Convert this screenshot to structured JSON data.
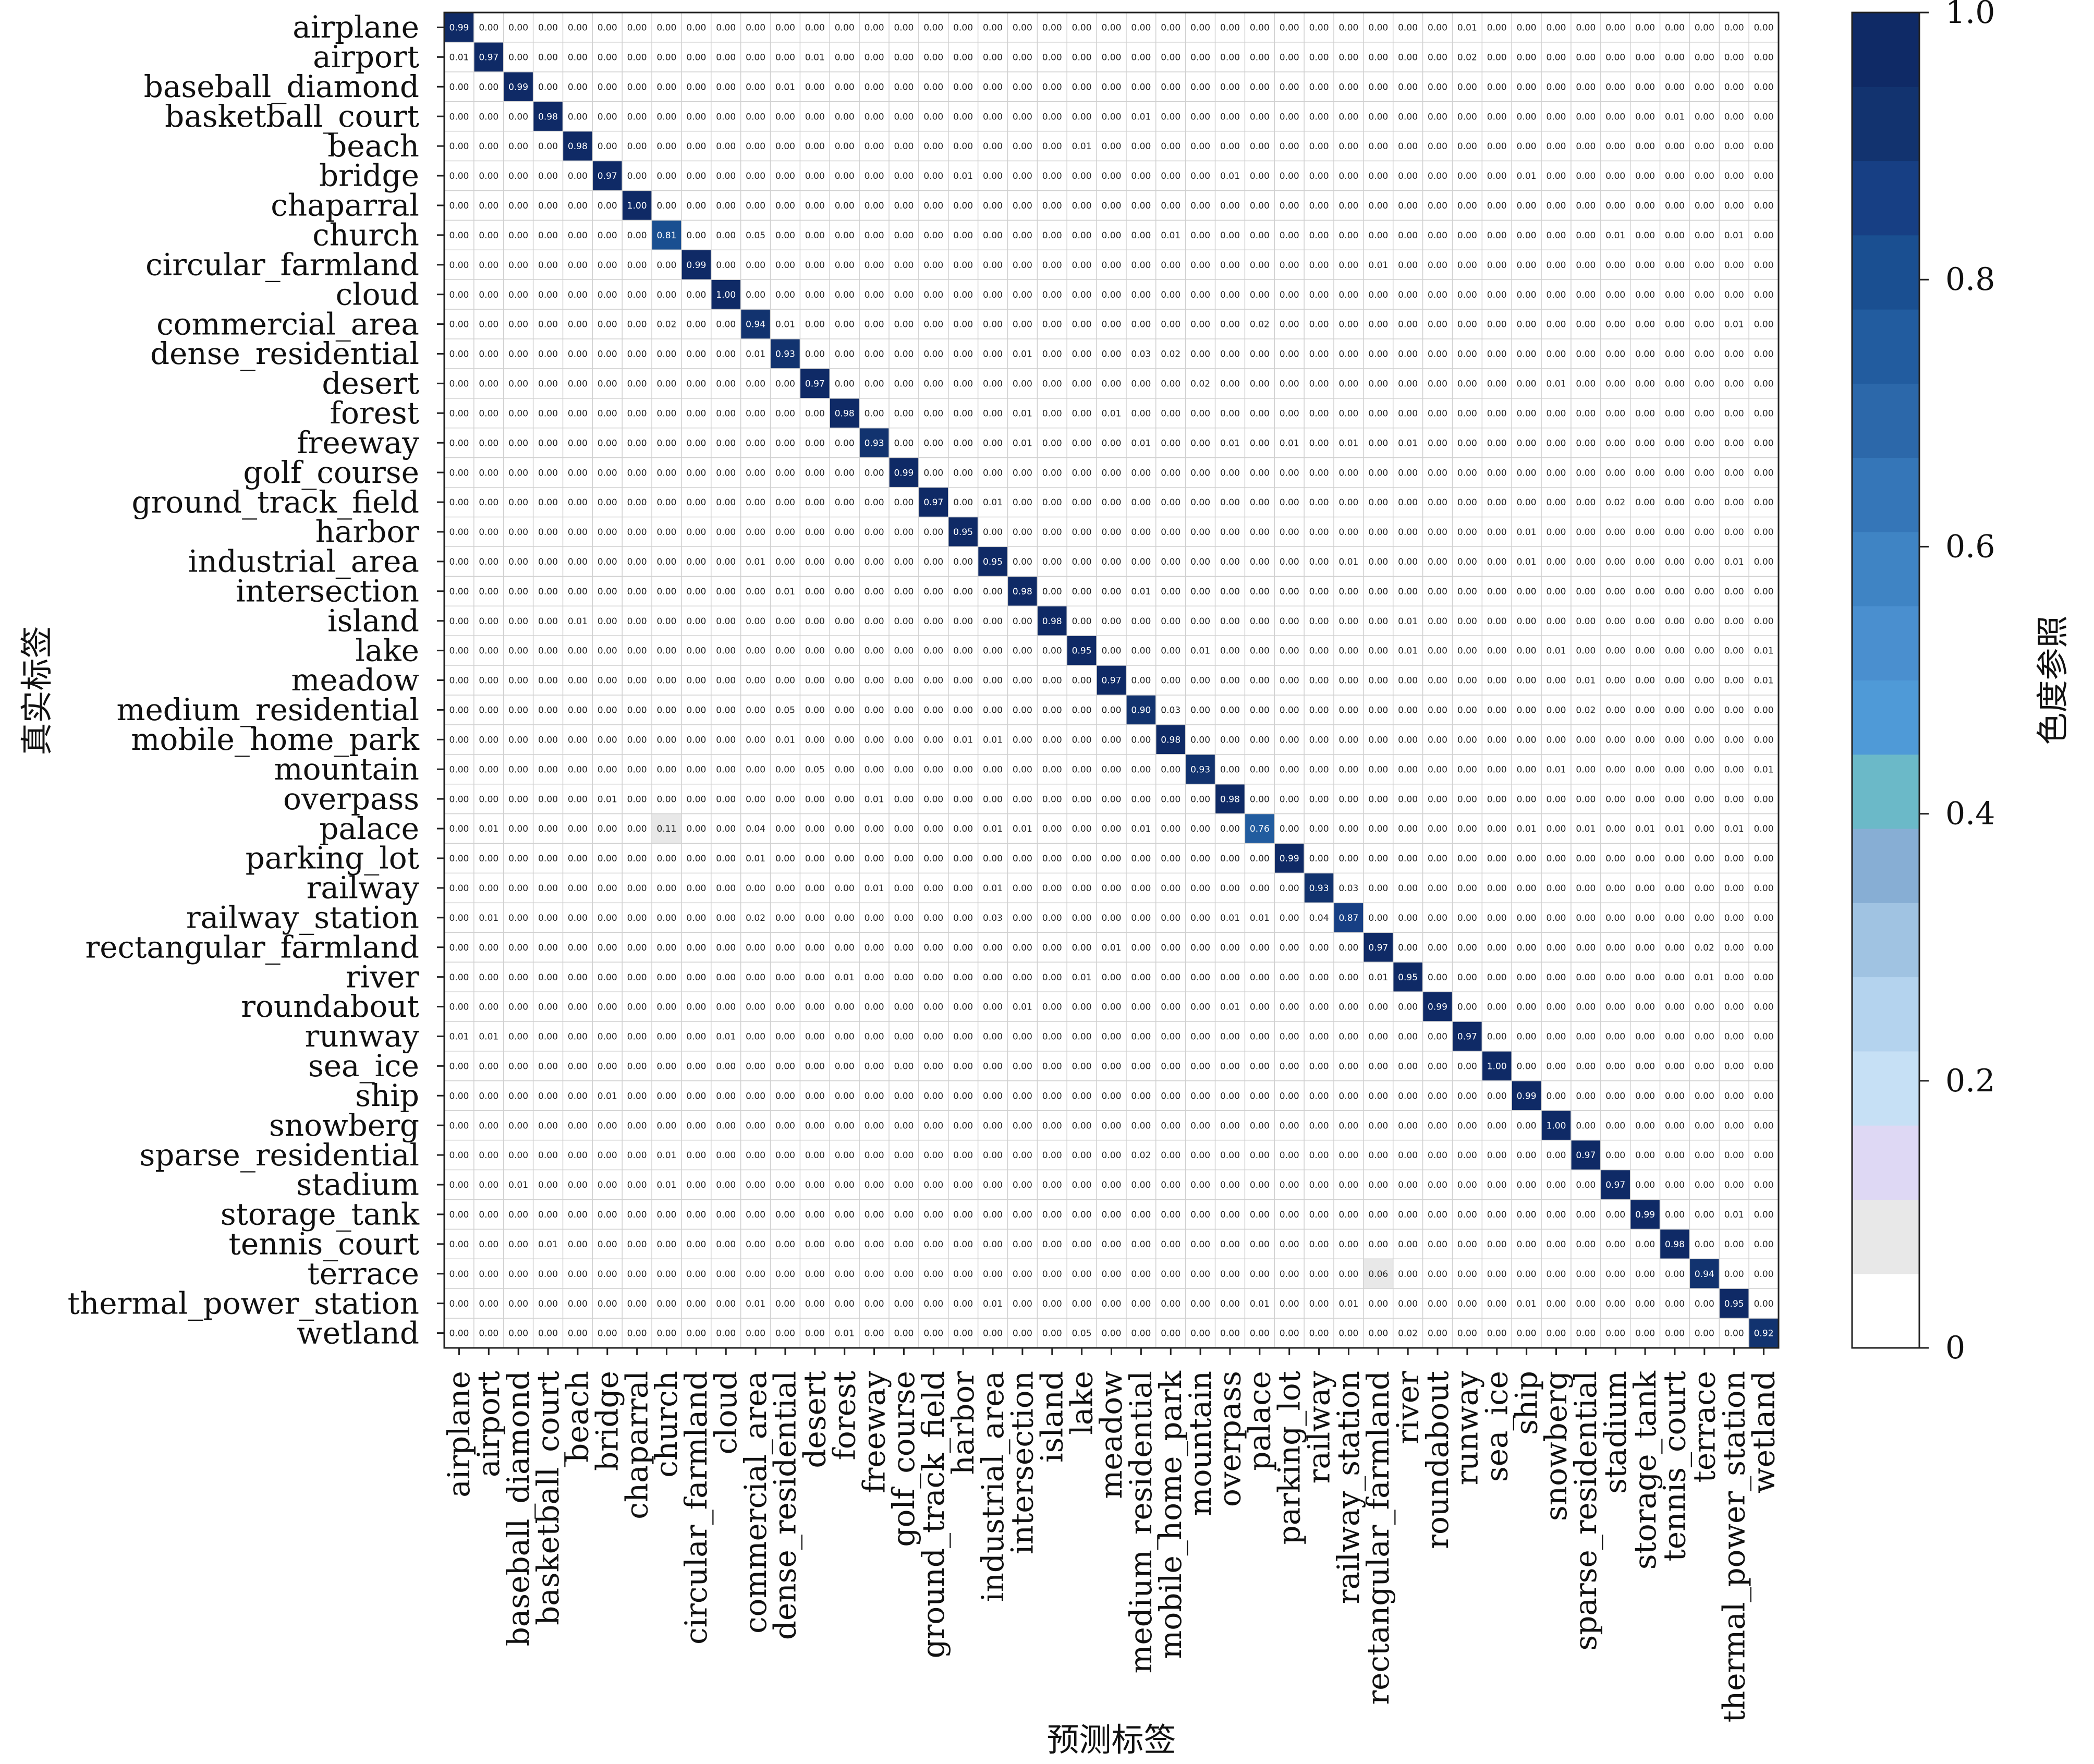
{
  "chart_data": {
    "type": "heatmap",
    "title": "",
    "xlabel": "预测标签",
    "ylabel": "真实标签",
    "colorbar_label": "色度参照",
    "colorbar_ticks": [
      "0",
      "0.2",
      "0.4",
      "0.6",
      "0.8",
      "1.0"
    ],
    "vlim": [
      0,
      1
    ],
    "grid": true,
    "number_format": "2 decimals",
    "colormap_steps": [
      "#ffffff",
      "#e8e8e8",
      "#ded8f4",
      "#c6e0f5",
      "#b4d3ee",
      "#a0c3e2",
      "#87aed4",
      "#6bb9c8",
      "#4f9ad7",
      "#4a8fcf",
      "#3f84c4",
      "#3576b8",
      "#2c68aa",
      "#225c9f",
      "#1a4f91",
      "#173f84",
      "#12336f",
      "#0f2a66"
    ],
    "categories": [
      "airplane",
      "airport",
      "baseball_diamond",
      "basketball_court",
      "beach",
      "bridge",
      "chaparral",
      "church",
      "circular_farmland",
      "cloud",
      "commercial_area",
      "dense_residential",
      "desert",
      "forest",
      "freeway",
      "golf_course",
      "ground_track_field",
      "harbor",
      "industrial_area",
      "intersection",
      "island",
      "lake",
      "meadow",
      "medium_residential",
      "mobile_home_park",
      "mountain",
      "overpass",
      "palace",
      "parking_lot",
      "railway",
      "railway_station",
      "rectangular_farmland",
      "river",
      "roundabout",
      "runway",
      "sea_ice",
      "ship",
      "snowberg",
      "sparse_residential",
      "stadium",
      "storage_tank",
      "tennis_court",
      "terrace",
      "thermal_power_station",
      "wetland"
    ],
    "diagonal": [
      0.99,
      0.97,
      0.99,
      0.98,
      0.98,
      0.97,
      1.0,
      0.81,
      0.99,
      1.0,
      0.94,
      0.93,
      0.97,
      0.98,
      0.93,
      0.99,
      0.97,
      0.95,
      0.95,
      0.98,
      0.98,
      0.95,
      0.97,
      0.9,
      0.98,
      0.93,
      0.98,
      0.76,
      0.99,
      0.93,
      0.87,
      0.97,
      0.95,
      0.99,
      0.97,
      1.0,
      0.99,
      1.0,
      0.97,
      0.97,
      0.99,
      0.98,
      0.94,
      0.95,
      0.92
    ],
    "off_diagonal": [
      {
        "row": "airplane",
        "col": "runway",
        "value": 0.01
      },
      {
        "row": "airport",
        "col": "airplane",
        "value": 0.01
      },
      {
        "row": "airport",
        "col": "desert",
        "value": 0.01
      },
      {
        "row": "airport",
        "col": "runway",
        "value": 0.02
      },
      {
        "row": "baseball_diamond",
        "col": "dense_residential",
        "value": 0.01
      },
      {
        "row": "basketball_court",
        "col": "medium_residential",
        "value": 0.01
      },
      {
        "row": "basketball_court",
        "col": "tennis_court",
        "value": 0.01
      },
      {
        "row": "beach",
        "col": "lake",
        "value": 0.01
      },
      {
        "row": "bridge",
        "col": "harbor",
        "value": 0.01
      },
      {
        "row": "bridge",
        "col": "overpass",
        "value": 0.01
      },
      {
        "row": "bridge",
        "col": "ship",
        "value": 0.01
      },
      {
        "row": "church",
        "col": "commercial_area",
        "value": 0.05
      },
      {
        "row": "church",
        "col": "mobile_home_park",
        "value": 0.01
      },
      {
        "row": "church",
        "col": "stadium",
        "value": 0.01
      },
      {
        "row": "church",
        "col": "thermal_power_station",
        "value": 0.01
      },
      {
        "row": "circular_farmland",
        "col": "rectangular_farmland",
        "value": 0.01
      },
      {
        "row": "commercial_area",
        "col": "church",
        "value": 0.02
      },
      {
        "row": "commercial_area",
        "col": "dense_residential",
        "value": 0.01
      },
      {
        "row": "commercial_area",
        "col": "palace",
        "value": 0.02
      },
      {
        "row": "commercial_area",
        "col": "thermal_power_station",
        "value": 0.01
      },
      {
        "row": "dense_residential",
        "col": "commercial_area",
        "value": 0.01
      },
      {
        "row": "dense_residential",
        "col": "intersection",
        "value": 0.01
      },
      {
        "row": "dense_residential",
        "col": "medium_residential",
        "value": 0.03
      },
      {
        "row": "dense_residential",
        "col": "mobile_home_park",
        "value": 0.02
      },
      {
        "row": "desert",
        "col": "mountain",
        "value": 0.02
      },
      {
        "row": "desert",
        "col": "snowberg",
        "value": 0.01
      },
      {
        "row": "forest",
        "col": "intersection",
        "value": 0.01
      },
      {
        "row": "forest",
        "col": "meadow",
        "value": 0.01
      },
      {
        "row": "freeway",
        "col": "intersection",
        "value": 0.01
      },
      {
        "row": "freeway",
        "col": "medium_residential",
        "value": 0.01
      },
      {
        "row": "freeway",
        "col": "overpass",
        "value": 0.01
      },
      {
        "row": "freeway",
        "col": "parking_lot",
        "value": 0.01
      },
      {
        "row": "freeway",
        "col": "railway_station",
        "value": 0.01
      },
      {
        "row": "freeway",
        "col": "river",
        "value": 0.01
      },
      {
        "row": "ground_track_field",
        "col": "industrial_area",
        "value": 0.01
      },
      {
        "row": "ground_track_field",
        "col": "stadium",
        "value": 0.02
      },
      {
        "row": "harbor",
        "col": "ship",
        "value": 0.01
      },
      {
        "row": "industrial_area",
        "col": "commercial_area",
        "value": 0.01
      },
      {
        "row": "industrial_area",
        "col": "railway_station",
        "value": 0.01
      },
      {
        "row": "industrial_area",
        "col": "ship",
        "value": 0.01
      },
      {
        "row": "industrial_area",
        "col": "thermal_power_station",
        "value": 0.01
      },
      {
        "row": "intersection",
        "col": "dense_residential",
        "value": 0.01
      },
      {
        "row": "intersection",
        "col": "medium_residential",
        "value": 0.01
      },
      {
        "row": "island",
        "col": "beach",
        "value": 0.01
      },
      {
        "row": "island",
        "col": "river",
        "value": 0.01
      },
      {
        "row": "lake",
        "col": "mountain",
        "value": 0.01
      },
      {
        "row": "lake",
        "col": "river",
        "value": 0.01
      },
      {
        "row": "lake",
        "col": "snowberg",
        "value": 0.01
      },
      {
        "row": "lake",
        "col": "wetland",
        "value": 0.01
      },
      {
        "row": "meadow",
        "col": "sparse_residential",
        "value": 0.01
      },
      {
        "row": "meadow",
        "col": "wetland",
        "value": 0.01
      },
      {
        "row": "medium_residential",
        "col": "dense_residential",
        "value": 0.05
      },
      {
        "row": "medium_residential",
        "col": "mobile_home_park",
        "value": 0.03
      },
      {
        "row": "medium_residential",
        "col": "sparse_residential",
        "value": 0.02
      },
      {
        "row": "mobile_home_park",
        "col": "dense_residential",
        "value": 0.01
      },
      {
        "row": "mobile_home_park",
        "col": "harbor",
        "value": 0.01
      },
      {
        "row": "mobile_home_park",
        "col": "industrial_area",
        "value": 0.01
      },
      {
        "row": "mountain",
        "col": "desert",
        "value": 0.05
      },
      {
        "row": "mountain",
        "col": "snowberg",
        "value": 0.01
      },
      {
        "row": "mountain",
        "col": "wetland",
        "value": 0.01
      },
      {
        "row": "overpass",
        "col": "bridge",
        "value": 0.01
      },
      {
        "row": "overpass",
        "col": "freeway",
        "value": 0.01
      },
      {
        "row": "palace",
        "col": "airport",
        "value": 0.01
      },
      {
        "row": "palace",
        "col": "church",
        "value": 0.11
      },
      {
        "row": "palace",
        "col": "commercial_area",
        "value": 0.04
      },
      {
        "row": "palace",
        "col": "industrial_area",
        "value": 0.01
      },
      {
        "row": "palace",
        "col": "intersection",
        "value": 0.01
      },
      {
        "row": "palace",
        "col": "medium_residential",
        "value": 0.01
      },
      {
        "row": "palace",
        "col": "ship",
        "value": 0.01
      },
      {
        "row": "palace",
        "col": "sparse_residential",
        "value": 0.01
      },
      {
        "row": "palace",
        "col": "storage_tank",
        "value": 0.01
      },
      {
        "row": "palace",
        "col": "tennis_court",
        "value": 0.01
      },
      {
        "row": "palace",
        "col": "thermal_power_station",
        "value": 0.01
      },
      {
        "row": "parking_lot",
        "col": "commercial_area",
        "value": 0.01
      },
      {
        "row": "railway",
        "col": "freeway",
        "value": 0.01
      },
      {
        "row": "railway",
        "col": "industrial_area",
        "value": 0.01
      },
      {
        "row": "railway",
        "col": "railway_station",
        "value": 0.03
      },
      {
        "row": "railway_station",
        "col": "airport",
        "value": 0.01
      },
      {
        "row": "railway_station",
        "col": "commercial_area",
        "value": 0.02
      },
      {
        "row": "railway_station",
        "col": "industrial_area",
        "value": 0.03
      },
      {
        "row": "railway_station",
        "col": "overpass",
        "value": 0.01
      },
      {
        "row": "railway_station",
        "col": "palace",
        "value": 0.01
      },
      {
        "row": "railway_station",
        "col": "railway",
        "value": 0.04
      },
      {
        "row": "rectangular_farmland",
        "col": "meadow",
        "value": 0.01
      },
      {
        "row": "rectangular_farmland",
        "col": "terrace",
        "value": 0.02
      },
      {
        "row": "river",
        "col": "forest",
        "value": 0.01
      },
      {
        "row": "river",
        "col": "lake",
        "value": 0.01
      },
      {
        "row": "river",
        "col": "rectangular_farmland",
        "value": 0.01
      },
      {
        "row": "river",
        "col": "terrace",
        "value": 0.01
      },
      {
        "row": "roundabout",
        "col": "intersection",
        "value": 0.01
      },
      {
        "row": "roundabout",
        "col": "overpass",
        "value": 0.01
      },
      {
        "row": "runway",
        "col": "airplane",
        "value": 0.01
      },
      {
        "row": "runway",
        "col": "airport",
        "value": 0.01
      },
      {
        "row": "runway",
        "col": "cloud",
        "value": 0.01
      },
      {
        "row": "ship",
        "col": "bridge",
        "value": 0.01
      },
      {
        "row": "sparse_residential",
        "col": "church",
        "value": 0.01
      },
      {
        "row": "sparse_residential",
        "col": "medium_residential",
        "value": 0.02
      },
      {
        "row": "stadium",
        "col": "baseball_diamond",
        "value": 0.01
      },
      {
        "row": "stadium",
        "col": "church",
        "value": 0.01
      },
      {
        "row": "storage_tank",
        "col": "thermal_power_station",
        "value": 0.01
      },
      {
        "row": "tennis_court",
        "col": "basketball_court",
        "value": 0.01
      },
      {
        "row": "terrace",
        "col": "rectangular_farmland",
        "value": 0.06
      },
      {
        "row": "thermal_power_station",
        "col": "commercial_area",
        "value": 0.01
      },
      {
        "row": "thermal_power_station",
        "col": "industrial_area",
        "value": 0.01
      },
      {
        "row": "thermal_power_station",
        "col": "palace",
        "value": 0.01
      },
      {
        "row": "thermal_power_station",
        "col": "railway_station",
        "value": 0.01
      },
      {
        "row": "thermal_power_station",
        "col": "ship",
        "value": 0.01
      },
      {
        "row": "wetland",
        "col": "forest",
        "value": 0.01
      },
      {
        "row": "wetland",
        "col": "lake",
        "value": 0.05
      },
      {
        "row": "wetland",
        "col": "river",
        "value": 0.02
      }
    ]
  }
}
